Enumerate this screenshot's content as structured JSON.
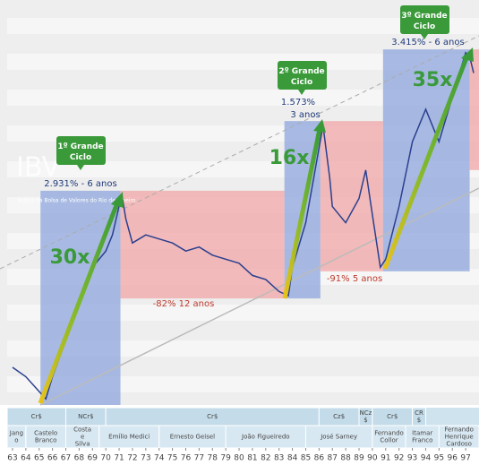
{
  "chart_data": {
    "type": "line",
    "watermark": "IBV",
    "watermark_subtitle": "Índice da Bolsa de Valores do Rio de Janeiro",
    "x": [
      63,
      64,
      65.5,
      66,
      67,
      68,
      69,
      70,
      70.5,
      71.2,
      71.5,
      72,
      73,
      74,
      75,
      76,
      77,
      78,
      79,
      80,
      81,
      82,
      83,
      83.7,
      84,
      85,
      86.3,
      86.8,
      87,
      88,
      89,
      89.5,
      90,
      90.6,
      91,
      92,
      93,
      94,
      95,
      96,
      97,
      97.3,
      97.6
    ],
    "series": [
      {
        "name": "IBV",
        "color": "#2a3f8f",
        "values": [
          9.3,
          7,
          1.5,
          7,
          16,
          25,
          34,
          38,
          42,
          52,
          46,
          40,
          42,
          41,
          40,
          38,
          39,
          37,
          36,
          35,
          32,
          31,
          28,
          27,
          34,
          45,
          69,
          56,
          49,
          45,
          51,
          58,
          47,
          34,
          36,
          49,
          65,
          73,
          65,
          76,
          87,
          86,
          82
        ]
      }
    ],
    "xlim": [
      62.6,
      98.0
    ],
    "ylim": [
      0,
      100
    ],
    "xticks": [
      63,
      64,
      65,
      66,
      67,
      68,
      69,
      70,
      71,
      72,
      73,
      74,
      75,
      76,
      77,
      78,
      79,
      80,
      81,
      82,
      83,
      84,
      85,
      86,
      87,
      88,
      89,
      90,
      91,
      92,
      93,
      94,
      95,
      96,
      97
    ],
    "regions": [
      {
        "x": [
          65.1,
          71.1
        ],
        "y": [
          0,
          52.9
        ],
        "color": "#8ea6dc"
      },
      {
        "x": [
          71.1,
          83.4
        ],
        "y": [
          26.3,
          52.9
        ],
        "color": "#f0a5a5"
      },
      {
        "x": [
          83.4,
          86.1
        ],
        "y": [
          26.3,
          70.1
        ],
        "color": "#8ea6dc"
      },
      {
        "x": [
          86.1,
          90.8
        ],
        "y": [
          33,
          70.1
        ],
        "color": "#f0a5a5"
      },
      {
        "x": [
          90.8,
          97.3
        ],
        "y": [
          33,
          87.8
        ],
        "color": "#8ea6dc"
      },
      {
        "x": [
          97.3,
          98.0
        ],
        "y": [
          58,
          87.8
        ],
        "color": "#f0a5a5"
      }
    ],
    "cycles": [
      "1º Grande Ciclo",
      "2º Grande Ciclo",
      "3º Grande Ciclo"
    ],
    "annotations": [
      "2.931% - 6 anos",
      "1.573%",
      "3 anos",
      "3.415% - 6 anos"
    ],
    "declines": [
      "-82%  12 anos",
      "-91%  5 anos"
    ],
    "multiples": [
      "30x",
      "16x",
      "35x"
    ],
    "currencies": [
      {
        "label": "Cr$",
        "from": 62.6,
        "to": 67
      },
      {
        "label": "NCr$",
        "from": 67,
        "to": 70
      },
      {
        "label": "Cr$",
        "from": 70,
        "to": 86
      },
      {
        "label": "Cz$",
        "from": 86,
        "to": 89
      },
      {
        "label": "NCz $",
        "from": 89,
        "to": 90
      },
      {
        "label": "Cr$",
        "from": 90,
        "to": 93
      },
      {
        "label": "CR $",
        "from": 93,
        "to": 94
      }
    ],
    "presidents": [
      {
        "label": "Jang o",
        "from": 62.6,
        "to": 64
      },
      {
        "label": "Castelo Branco",
        "from": 64,
        "to": 67
      },
      {
        "label": "Costa e Silva",
        "from": 67,
        "to": 69.5
      },
      {
        "label": "Emílio Medici",
        "from": 69.5,
        "to": 74
      },
      {
        "label": "Ernesto Geisel",
        "from": 74,
        "to": 79
      },
      {
        "label": "João Figueiredo",
        "from": 79,
        "to": 85
      },
      {
        "label": "José Sarney",
        "from": 85,
        "to": 90
      },
      {
        "label": "Fernando Collor",
        "from": 90,
        "to": 92.5
      },
      {
        "label": "Itamar Franco",
        "from": 92.5,
        "to": 95
      },
      {
        "label": "Fernando Henrique Cardoso",
        "from": 95,
        "to": 98.0
      }
    ]
  }
}
